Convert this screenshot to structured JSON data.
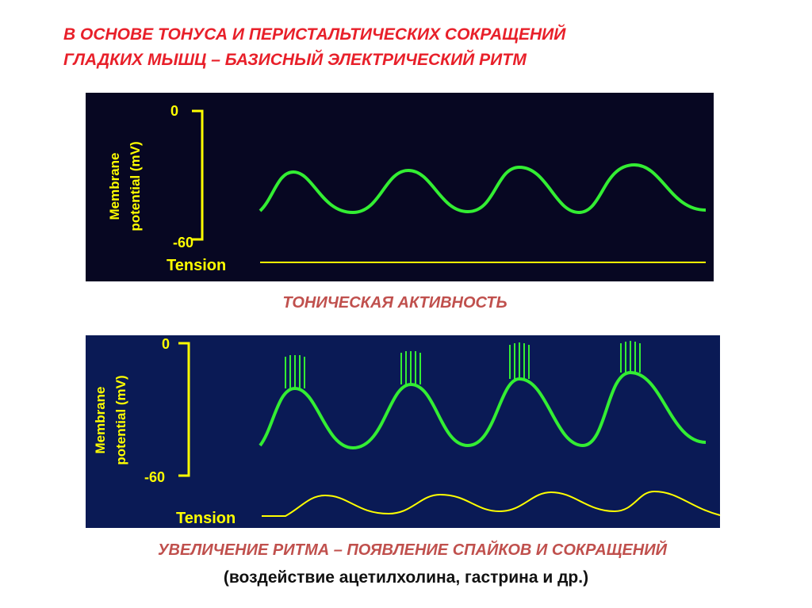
{
  "title": [
    "В ОСНОВЕ ТОНУСА И ПЕРИСТАЛЬТИЧЕСКИХ СОКРАЩЕНИЙ",
    "ГЛАДКИХ МЫШЦ – БАЗИСНЫЙ ЭЛЕКТРИЧЕСКИЙ РИТМ"
  ],
  "panels": [
    {
      "y_label": [
        "Membrane",
        "potential (mV)"
      ],
      "tick_top": "0",
      "tick_bottom": "-60",
      "tension_label": "Tension",
      "caption": [
        "ТОНИЧЕСКАЯ АКТИВНОСТЬ"
      ]
    },
    {
      "y_label": [
        "Membrane",
        "potential (mV)"
      ],
      "tick_top": "0",
      "tick_bottom": "-60",
      "tension_label": "Tension",
      "caption": [
        "УВЕЛИЧЕНИЕ РИТМА – ПОЯВЛЕНИЕ СПАЙКОВ И СОКРАЩЕНИЙ",
        "(воздействие ацетилхолина, гастрина и др.)"
      ]
    }
  ]
}
